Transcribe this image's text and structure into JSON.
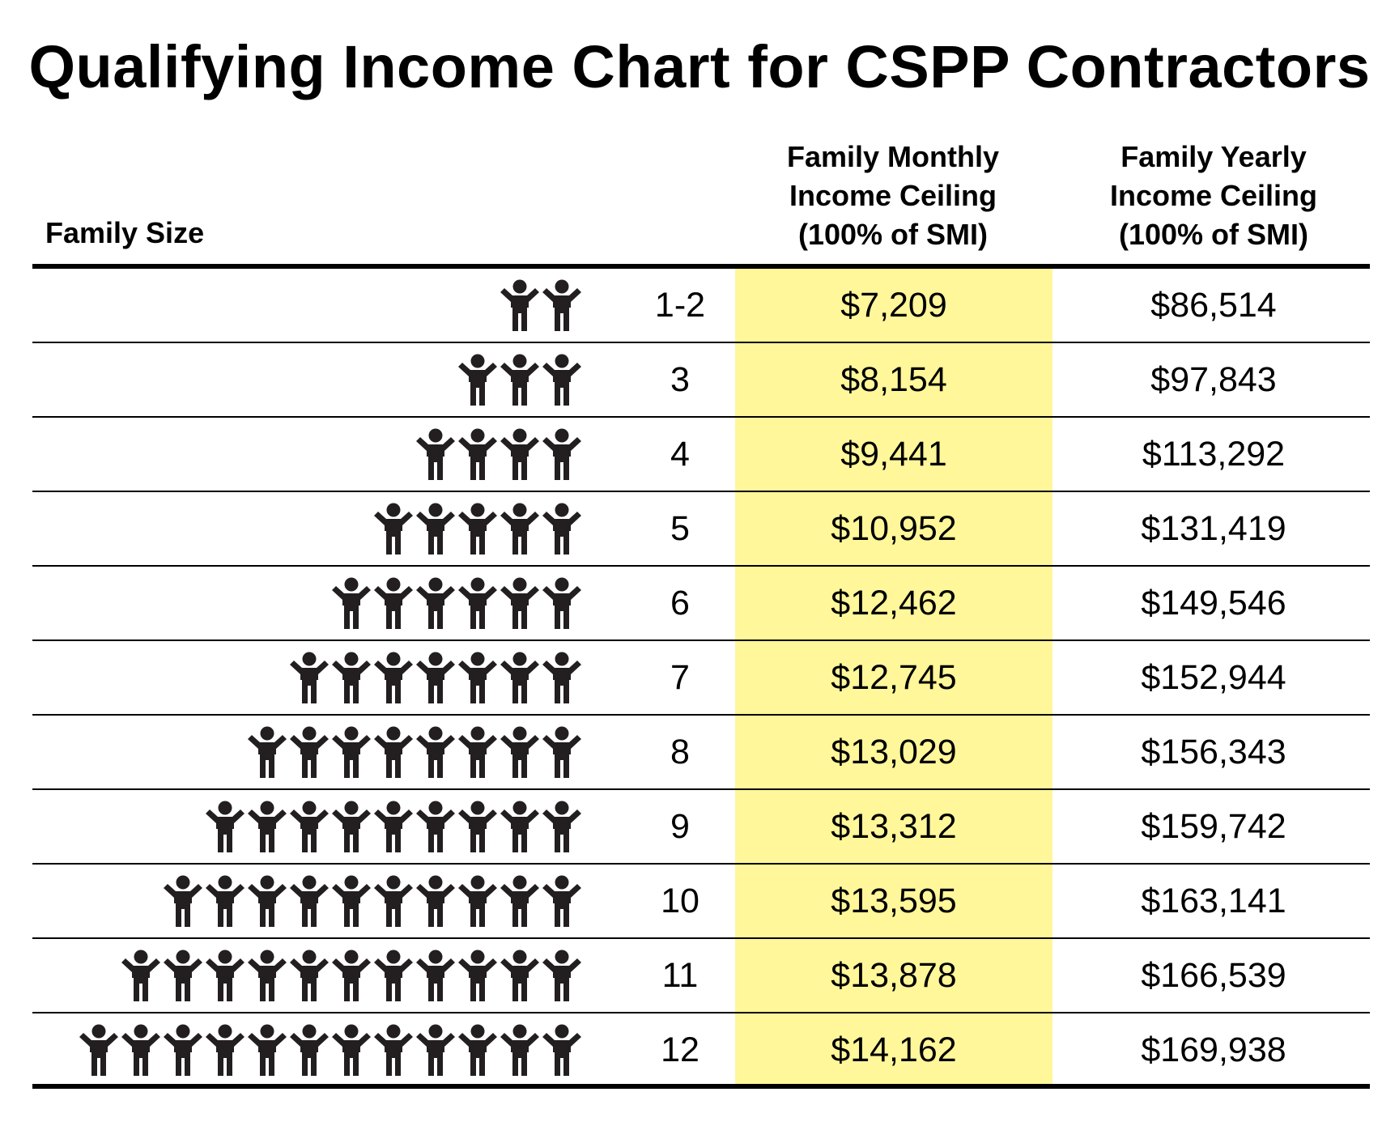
{
  "title": "Qualifying Income Chart for CSPP Contractors",
  "headers": {
    "family_size": "Family Size",
    "monthly": [
      "Family Monthly",
      "Income Ceiling",
      "(100% of SMI)"
    ],
    "yearly": [
      "Family Yearly",
      "Income Ceiling",
      "(100% of SMI)"
    ]
  },
  "colors": {
    "highlight": "#fff799",
    "icon": "#231f20"
  },
  "icon_name": "person-icon",
  "rows": [
    {
      "size": "1-2",
      "people": 2,
      "monthly": "$7,209",
      "yearly": "$86,514"
    },
    {
      "size": "3",
      "people": 3,
      "monthly": "$8,154",
      "yearly": "$97,843"
    },
    {
      "size": "4",
      "people": 4,
      "monthly": "$9,441",
      "yearly": "$113,292"
    },
    {
      "size": "5",
      "people": 5,
      "monthly": "$10,952",
      "yearly": "$131,419"
    },
    {
      "size": "6",
      "people": 6,
      "monthly": "$12,462",
      "yearly": "$149,546"
    },
    {
      "size": "7",
      "people": 7,
      "monthly": "$12,745",
      "yearly": "$152,944"
    },
    {
      "size": "8",
      "people": 8,
      "monthly": "$13,029",
      "yearly": "$156,343"
    },
    {
      "size": "9",
      "people": 9,
      "monthly": "$13,312",
      "yearly": "$159,742"
    },
    {
      "size": "10",
      "people": 10,
      "monthly": "$13,595",
      "yearly": "$163,141"
    },
    {
      "size": "11",
      "people": 11,
      "monthly": "$13,878",
      "yearly": "$166,539"
    },
    {
      "size": "12",
      "people": 12,
      "monthly": "$14,162",
      "yearly": "$169,938"
    }
  ]
}
